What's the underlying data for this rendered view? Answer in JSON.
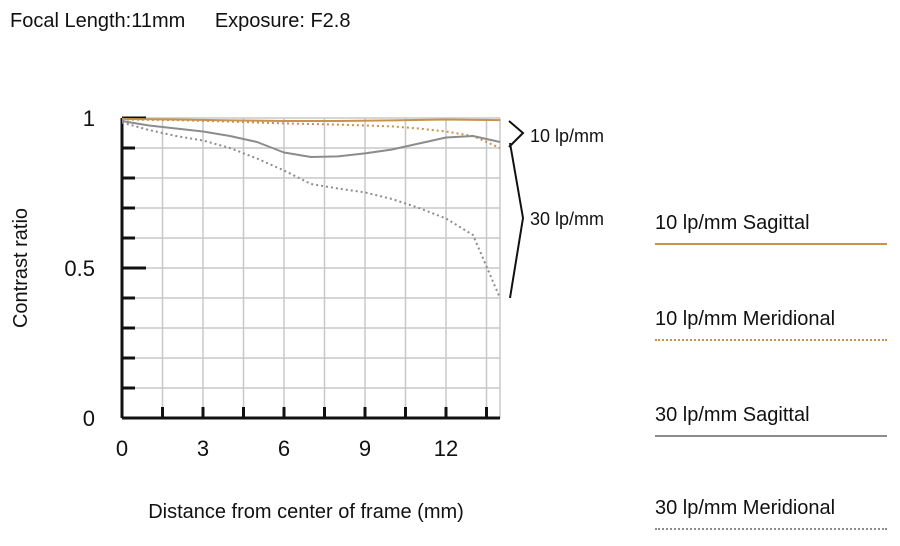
{
  "header": {
    "focal_length": "Focal Length:11mm",
    "exposure": "Exposure: F2.8"
  },
  "colors": {
    "orange": "#c8924a",
    "gray": "#8c8c8c",
    "axis": "#111111",
    "grid": "#c8c8c8"
  },
  "chart_data": {
    "type": "line",
    "xlabel": "Distance from center of frame (mm)",
    "ylabel": "Contrast ratio",
    "xlim": [
      0,
      14
    ],
    "ylim": [
      0,
      1
    ],
    "xticks": [
      0,
      3,
      6,
      9,
      12
    ],
    "yticks": [
      {
        "value": 0,
        "label": "0"
      },
      {
        "value": 0.5,
        "label": "0.5"
      },
      {
        "value": 1,
        "label": "1"
      }
    ],
    "grid": true,
    "annotations": [
      "10 lp/mm",
      "30 lp/mm"
    ],
    "series": [
      {
        "name": "10 lp/mm Sagittal",
        "color": "#c8924a",
        "dash": "solid",
        "x": [
          0,
          2,
          4,
          6,
          8,
          10,
          12,
          14
        ],
        "y": [
          0.997,
          0.995,
          0.992,
          0.99,
          0.99,
          0.992,
          0.995,
          0.993
        ]
      },
      {
        "name": "10 lp/mm Meridional",
        "color": "#c8924a",
        "dash": "dotted",
        "x": [
          0,
          2,
          4,
          6,
          8,
          10,
          11,
          12,
          13,
          14
        ],
        "y": [
          0.995,
          0.993,
          0.988,
          0.982,
          0.978,
          0.972,
          0.965,
          0.955,
          0.94,
          0.9
        ]
      },
      {
        "name": "30 lp/mm Sagittal",
        "color": "#8c8c8c",
        "dash": "solid",
        "x": [
          0,
          1,
          2,
          3,
          4,
          5,
          6,
          7,
          8,
          9,
          10,
          11,
          12,
          13,
          14
        ],
        "y": [
          0.99,
          0.975,
          0.965,
          0.955,
          0.94,
          0.92,
          0.885,
          0.87,
          0.872,
          0.882,
          0.895,
          0.915,
          0.935,
          0.94,
          0.92
        ]
      },
      {
        "name": "30 lp/mm Meridional",
        "color": "#8c8c8c",
        "dash": "dotted",
        "x": [
          0,
          1,
          2,
          3,
          4,
          5,
          6,
          7,
          8,
          9,
          10,
          11,
          12,
          13,
          14
        ],
        "y": [
          0.985,
          0.96,
          0.94,
          0.925,
          0.9,
          0.865,
          0.825,
          0.78,
          0.765,
          0.752,
          0.73,
          0.7,
          0.665,
          0.61,
          0.4
        ]
      }
    ]
  }
}
